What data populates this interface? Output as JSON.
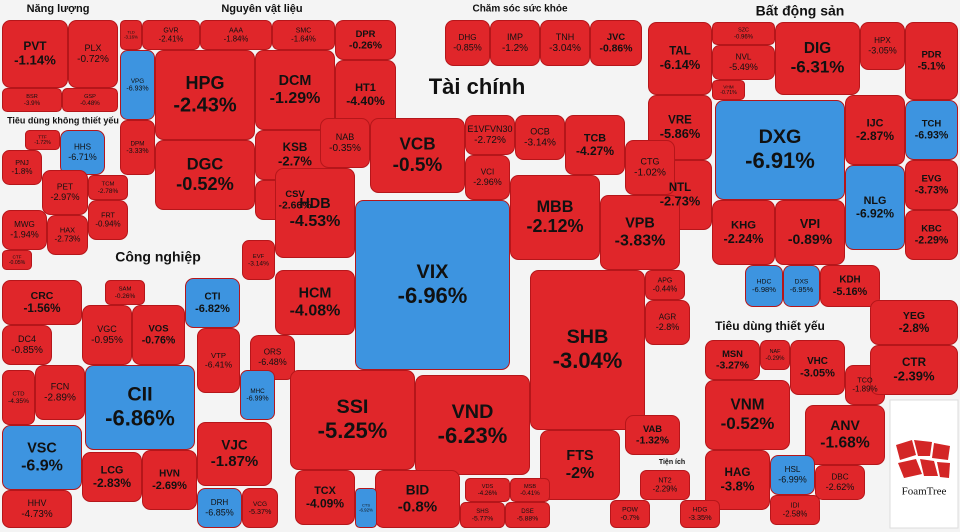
{
  "groups": [
    {
      "label": "Năng lượng",
      "cells": [
        {
          "ticker": "PVT",
          "change": "-1.14%",
          "color": "#e0262a"
        },
        {
          "ticker": "PLX",
          "change": "-0.72%",
          "color": "#e0262a"
        },
        {
          "ticker": "BSR",
          "change": "-3.9%",
          "color": "#e0262a"
        },
        {
          "ticker": "GSP",
          "change": "-0.48%",
          "color": "#e0262a"
        }
      ]
    },
    {
      "label": "Nguyên vật liệu",
      "cells": [
        {
          "ticker": "TLD",
          "change": "-3.16%",
          "color": "#e0262a"
        },
        {
          "ticker": "GVR",
          "change": "-2.41%",
          "color": "#e0262a"
        },
        {
          "ticker": "AAA",
          "change": "-1.84%",
          "color": "#e0262a"
        },
        {
          "ticker": "SMC",
          "change": "-1.64%",
          "color": "#e0262a"
        },
        {
          "ticker": "DPR",
          "change": "-0.26%",
          "color": "#e0262a"
        },
        {
          "ticker": "VPG",
          "change": "-6.93%",
          "color": "#3d94e0"
        },
        {
          "ticker": "HPG",
          "change": "-2.43%",
          "color": "#e0262a"
        },
        {
          "ticker": "DCM",
          "change": "-1.29%",
          "color": "#e0262a"
        },
        {
          "ticker": "HT1",
          "change": "-4.40%",
          "color": "#e0262a"
        },
        {
          "ticker": "DPM",
          "change": "-3.33%",
          "color": "#e0262a"
        },
        {
          "ticker": "DGC",
          "change": "-0.52%",
          "color": "#e0262a"
        },
        {
          "ticker": "KSB",
          "change": "-2.7%",
          "color": "#e0262a"
        },
        {
          "ticker": "CSV",
          "change": "-2.66%",
          "color": "#e0262a"
        }
      ]
    },
    {
      "label": "Chăm sóc sức khỏe",
      "cells": [
        {
          "ticker": "DHG",
          "change": "-0.85%",
          "color": "#e0262a"
        },
        {
          "ticker": "IMP",
          "change": "-1.2%",
          "color": "#e0262a"
        },
        {
          "ticker": "TNH",
          "change": "-3.04%",
          "color": "#e0262a"
        },
        {
          "ticker": "JVC",
          "change": "-0.86%",
          "color": "#e0262a"
        }
      ]
    },
    {
      "label": "Bất động sản",
      "cells": [
        {
          "ticker": "TAL",
          "change": "-6.14%",
          "color": "#e0262a"
        },
        {
          "ticker": "SZC",
          "change": "-0.96%",
          "color": "#e0262a"
        },
        {
          "ticker": "NVL",
          "change": "-5.49%",
          "color": "#e0262a"
        },
        {
          "ticker": "VHM",
          "change": "-0.71%",
          "color": "#e0262a"
        },
        {
          "ticker": "DIG",
          "change": "-6.31%",
          "color": "#e0262a"
        },
        {
          "ticker": "HPX",
          "change": "-3.05%",
          "color": "#e0262a"
        },
        {
          "ticker": "PDR",
          "change": "-5.1%",
          "color": "#e0262a"
        },
        {
          "ticker": "VRE",
          "change": "-5.86%",
          "color": "#e0262a"
        },
        {
          "ticker": "DXG",
          "change": "-6.91%",
          "color": "#3d94e0"
        },
        {
          "ticker": "IJC",
          "change": "-2.87%",
          "color": "#e0262a"
        },
        {
          "ticker": "TCH",
          "change": "-6.93%",
          "color": "#3d94e0"
        },
        {
          "ticker": "NTL",
          "change": "-2.73%",
          "color": "#e0262a"
        },
        {
          "ticker": "EVG",
          "change": "-3.73%",
          "color": "#e0262a"
        },
        {
          "ticker": "NLG",
          "change": "-6.92%",
          "color": "#3d94e0"
        },
        {
          "ticker": "KHG",
          "change": "-2.24%",
          "color": "#e0262a"
        },
        {
          "ticker": "VPI",
          "change": "-0.89%",
          "color": "#e0262a"
        },
        {
          "ticker": "KBC",
          "change": "-2.29%",
          "color": "#e0262a"
        },
        {
          "ticker": "KDH",
          "change": "-5.16%",
          "color": "#e0262a"
        },
        {
          "ticker": "HDC",
          "change": "-6.98%",
          "color": "#3d94e0"
        },
        {
          "ticker": "DXS",
          "change": "-6.95%",
          "color": "#3d94e0"
        }
      ]
    },
    {
      "label": "Tài chính",
      "cells": [
        {
          "ticker": "NAB",
          "change": "-0.35%",
          "color": "#e0262a"
        },
        {
          "ticker": "VCB",
          "change": "-0.5%",
          "color": "#e0262a"
        },
        {
          "ticker": "E1VFVN30",
          "change": "-2.72%",
          "color": "#e0262a"
        },
        {
          "ticker": "OCB",
          "change": "-3.14%",
          "color": "#e0262a"
        },
        {
          "ticker": "TCB",
          "change": "-4.27%",
          "color": "#e0262a"
        },
        {
          "ticker": "VCI",
          "change": "-2.96%",
          "color": "#e0262a"
        },
        {
          "ticker": "CTG",
          "change": "-1.02%",
          "color": "#e0262a"
        },
        {
          "ticker": "HDB",
          "change": "-4.53%",
          "color": "#e0262a"
        },
        {
          "ticker": "MBB",
          "change": "-2.12%",
          "color": "#e0262a"
        },
        {
          "ticker": "VPB",
          "change": "-3.83%",
          "color": "#e0262a"
        },
        {
          "ticker": "EVF",
          "change": "-3.14%",
          "color": "#e0262a"
        },
        {
          "ticker": "VIX",
          "change": "-6.96%",
          "color": "#3d94e0"
        },
        {
          "ticker": "HCM",
          "change": "-4.08%",
          "color": "#e0262a"
        },
        {
          "ticker": "APG",
          "change": "-0.44%",
          "color": "#e0262a"
        },
        {
          "ticker": "AGR",
          "change": "-2.8%",
          "color": "#e0262a"
        },
        {
          "ticker": "SHB",
          "change": "-3.04%",
          "color": "#e0262a"
        },
        {
          "ticker": "ORS",
          "change": "-6.48%",
          "color": "#e0262a"
        },
        {
          "ticker": "SSI",
          "change": "-5.25%",
          "color": "#e0262a"
        },
        {
          "ticker": "VND",
          "change": "-6.23%",
          "color": "#e0262a"
        },
        {
          "ticker": "FTS",
          "change": "-2%",
          "color": "#e0262a"
        },
        {
          "ticker": "VAB",
          "change": "-1.32%",
          "color": "#e0262a"
        },
        {
          "ticker": "BID",
          "change": "-0.8%",
          "color": "#e0262a"
        },
        {
          "ticker": "TCX",
          "change": "-4.09%",
          "color": "#e0262a"
        },
        {
          "ticker": "CTS",
          "change": "-6.92%",
          "color": "#3d94e0"
        },
        {
          "ticker": "VDS",
          "change": "-4.26%",
          "color": "#e0262a"
        },
        {
          "ticker": "MSB",
          "change": "-0.41%",
          "color": "#e0262a"
        },
        {
          "ticker": "SHS",
          "change": "-5.77%",
          "color": "#e0262a"
        },
        {
          "ticker": "DSE",
          "change": "-5.88%",
          "color": "#e0262a"
        }
      ]
    },
    {
      "label": "Tiêu dùng không thiết yếu",
      "cells": [
        {
          "ticker": "TTF",
          "change": "-1.72%",
          "color": "#e0262a"
        },
        {
          "ticker": "HHS",
          "change": "-6.71%",
          "color": "#3d94e0"
        },
        {
          "ticker": "PNJ",
          "change": "-1.8%",
          "color": "#e0262a"
        },
        {
          "ticker": "TCM",
          "change": "-2.78%",
          "color": "#e0262a"
        },
        {
          "ticker": "PET",
          "change": "-2.97%",
          "color": "#e0262a"
        },
        {
          "ticker": "FRT",
          "change": "-0.94%",
          "color": "#e0262a"
        },
        {
          "ticker": "MWG",
          "change": "-1.94%",
          "color": "#e0262a"
        },
        {
          "ticker": "HAX",
          "change": "-2.73%",
          "color": "#e0262a"
        },
        {
          "ticker": "CTF",
          "change": "-0.05%",
          "color": "#e0262a"
        }
      ]
    },
    {
      "label": "Công nghiệp",
      "cells": [
        {
          "ticker": "CRC",
          "change": "-1.56%",
          "color": "#e0262a"
        },
        {
          "ticker": "SAM",
          "change": "-0.26%",
          "color": "#e0262a"
        },
        {
          "ticker": "CTI",
          "change": "-6.82%",
          "color": "#3d94e0"
        },
        {
          "ticker": "VGC",
          "change": "-0.95%",
          "color": "#e0262a"
        },
        {
          "ticker": "VOS",
          "change": "-0.76%",
          "color": "#e0262a"
        },
        {
          "ticker": "DC4",
          "change": "-0.85%",
          "color": "#e0262a"
        },
        {
          "ticker": "FCN",
          "change": "-2.89%",
          "color": "#e0262a"
        },
        {
          "ticker": "VTP",
          "change": "-6.41%",
          "color": "#e0262a"
        },
        {
          "ticker": "CII",
          "change": "-6.86%",
          "color": "#3d94e0"
        },
        {
          "ticker": "MHC",
          "change": "-6.99%",
          "color": "#3d94e0"
        },
        {
          "ticker": "CTD",
          "change": "-4.35%",
          "color": "#e0262a"
        },
        {
          "ticker": "VSC",
          "change": "-6.9%",
          "color": "#3d94e0"
        },
        {
          "ticker": "VJC",
          "change": "-1.87%",
          "color": "#e0262a"
        },
        {
          "ticker": "LCG",
          "change": "-2.83%",
          "color": "#e0262a"
        },
        {
          "ticker": "HHV",
          "change": "-4.73%",
          "color": "#e0262a"
        },
        {
          "ticker": "HVN",
          "change": "-2.69%",
          "color": "#e0262a"
        },
        {
          "ticker": "DRH",
          "change": "-6.85%",
          "color": "#3d94e0"
        },
        {
          "ticker": "VCG",
          "change": "-5.37%",
          "color": "#e0262a"
        }
      ]
    },
    {
      "label": "Tiêu dùng thiết yếu",
      "cells": [
        {
          "ticker": "MSN",
          "change": "-3.27%",
          "color": "#e0262a"
        },
        {
          "ticker": "NAF",
          "change": "-0.29%",
          "color": "#e0262a"
        },
        {
          "ticker": "VHC",
          "change": "-3.05%",
          "color": "#e0262a"
        },
        {
          "ticker": "TCO",
          "change": "-1.89%",
          "color": "#e0262a"
        },
        {
          "ticker": "VNM",
          "change": "-0.52%",
          "color": "#e0262a"
        },
        {
          "ticker": "ANV",
          "change": "-1.68%",
          "color": "#e0262a"
        },
        {
          "ticker": "HAG",
          "change": "-3.8%",
          "color": "#e0262a"
        },
        {
          "ticker": "HSL",
          "change": "-6.99%",
          "color": "#3d94e0"
        },
        {
          "ticker": "DBC",
          "change": "-2.62%",
          "color": "#e0262a"
        },
        {
          "ticker": "IDI",
          "change": "-2.58%",
          "color": "#e0262a"
        }
      ]
    },
    {
      "label": "Tiện ích",
      "cells": [
        {
          "ticker": "NT2",
          "change": "-2.29%",
          "color": "#e0262a"
        },
        {
          "ticker": "POW",
          "change": "-0.7%",
          "color": "#e0262a"
        },
        {
          "ticker": "HDG",
          "change": "-3.35%",
          "color": "#e0262a"
        }
      ]
    },
    {
      "cells": [
        {
          "ticker": "YEG",
          "change": "-2.8%",
          "color": "#e0262a"
        },
        {
          "ticker": "CTR",
          "change": "-2.39%",
          "color": "#e0262a"
        }
      ]
    }
  ],
  "logo": "FoamTree"
}
